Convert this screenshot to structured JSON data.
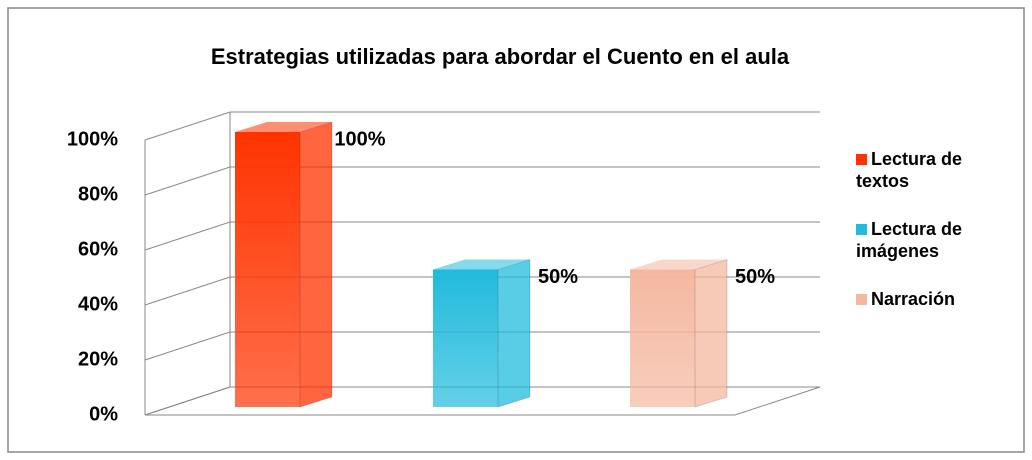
{
  "chart_data": {
    "type": "bar3d",
    "title": "Estrategias utilizadas para abordar el Cuento en el aula",
    "categories": [
      null
    ],
    "series": [
      {
        "name": "Lectura de textos",
        "color": "#ff3300",
        "values": [
          100
        ],
        "value_labels": [
          "100%"
        ]
      },
      {
        "name": "Lectura de imágenes",
        "color": "#22bbdd",
        "values": [
          50
        ],
        "value_labels": [
          "50%"
        ]
      },
      {
        "name": "Narración",
        "color": "#f4b8a0",
        "values": [
          50
        ],
        "value_labels": [
          "50%"
        ]
      }
    ],
    "ylim": [
      0,
      100
    ],
    "yticks": [
      {
        "value": 0,
        "label": "0%"
      },
      {
        "value": 20,
        "label": "20%"
      },
      {
        "value": 40,
        "label": "40%"
      },
      {
        "value": 60,
        "label": "60%"
      },
      {
        "value": 80,
        "label": "80%"
      },
      {
        "value": 100,
        "label": "100%"
      }
    ],
    "grid": true,
    "legend": "right"
  }
}
